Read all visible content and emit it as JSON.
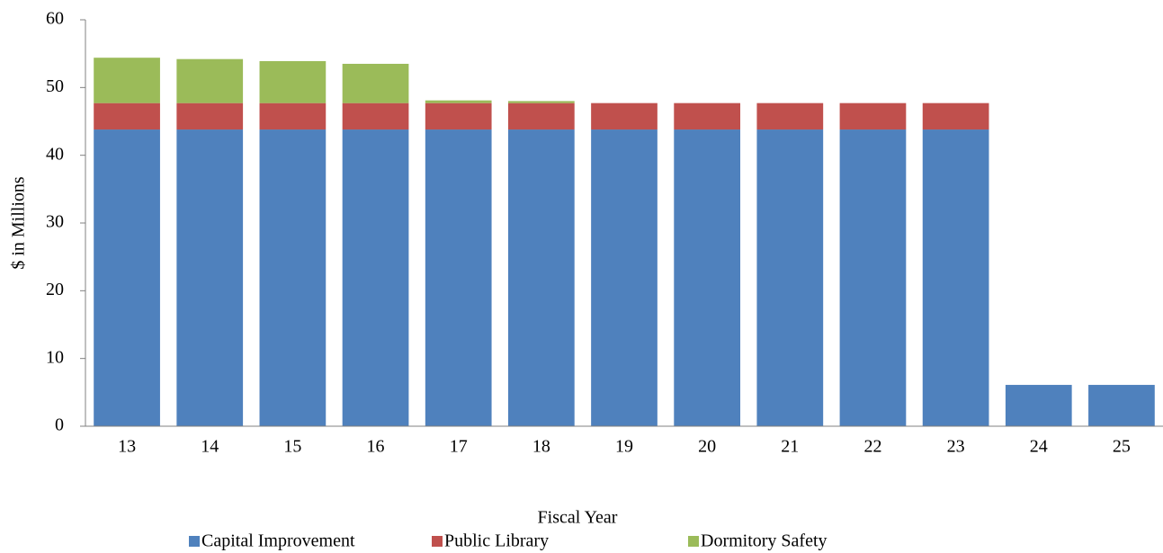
{
  "chart_data": {
    "type": "stacked_bar",
    "y_label": "$ in Millions",
    "x_label": "Fiscal Year",
    "categories": [
      "13",
      "14",
      "15",
      "16",
      "17",
      "18",
      "19",
      "20",
      "21",
      "22",
      "23",
      "24",
      "25"
    ],
    "series": [
      {
        "name": "Capital Improvement",
        "color": "#4f81bd",
        "values": [
          43.8,
          43.8,
          43.8,
          43.8,
          43.8,
          43.8,
          43.8,
          43.8,
          43.8,
          43.8,
          43.8,
          6.1,
          6.1
        ]
      },
      {
        "name": "Public Library",
        "color": "#c0504d",
        "values": [
          3.9,
          3.9,
          3.9,
          3.9,
          3.9,
          3.9,
          3.9,
          3.9,
          3.9,
          3.9,
          3.9,
          0,
          0
        ]
      },
      {
        "name": "Dormitory Safety",
        "color": "#9bbb59",
        "values": [
          6.7,
          6.5,
          6.2,
          5.8,
          0.4,
          0.3,
          0,
          0,
          0,
          0,
          0,
          0,
          0
        ]
      }
    ],
    "ylim": [
      0,
      60
    ],
    "yticks": [
      0,
      10,
      20,
      30,
      40,
      50,
      60
    ],
    "grid": false,
    "legend": "bottom"
  }
}
